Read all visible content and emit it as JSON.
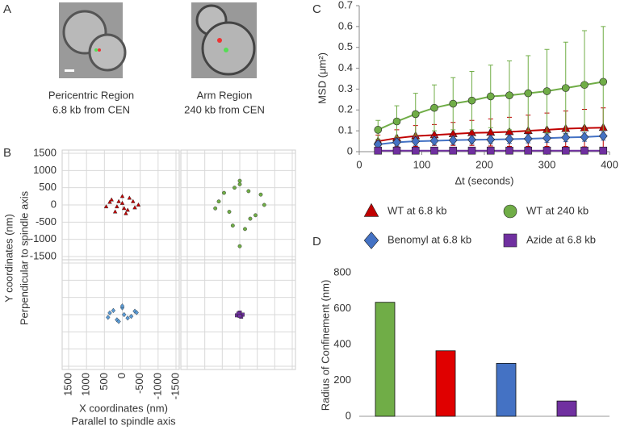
{
  "figure": {
    "A": {
      "letter": "A",
      "captions": [
        [
          "Pericentric Region",
          "6.8 kb from CEN"
        ],
        [
          "Arm Region",
          "240 kb from CEN"
        ]
      ]
    }
  },
  "chart_data": [
    {
      "type": "scatter-grid",
      "letter": "B",
      "ylabel": [
        "Y coordinates (nm)",
        "Perpendicular to spindle axis"
      ],
      "xlabel": [
        "X coordinates (nm)",
        "Parallel to spindle axis"
      ],
      "xlim": [
        1500,
        -1500
      ],
      "ylim": [
        -1500,
        1500
      ],
      "xticks": [
        1500,
        1000,
        500,
        0,
        -500,
        -1000,
        -1500
      ],
      "yticks": [
        1500,
        1000,
        500,
        0,
        -500,
        -1000,
        -1500
      ],
      "grid": true,
      "series": [
        {
          "color": "#c00000",
          "marker": "triangle",
          "x": [
            -300,
            -150,
            0,
            150,
            300,
            -450,
            450,
            -200,
            200,
            -50,
            100,
            -350,
            350,
            0,
            -100
          ],
          "y": [
            100,
            -150,
            50,
            -50,
            150,
            0,
            -50,
            200,
            -200,
            -100,
            100,
            -80,
            80,
            250,
            -250
          ]
        },
        {
          "color": "#70ad47",
          "marker": "circle",
          "x": [
            -600,
            -300,
            0,
            300,
            600,
            -150,
            150,
            -450,
            450,
            0,
            -700,
            700,
            200,
            -250,
            0
          ],
          "y": [
            300,
            -400,
            600,
            -200,
            100,
            -700,
            500,
            -300,
            350,
            -1200,
            0,
            -100,
            -600,
            400,
            700
          ]
        },
        {
          "color": "#5b9bd5",
          "marker": "diamond",
          "x": [
            -350,
            -150,
            0,
            150,
            350,
            -250,
            250,
            -50,
            100,
            0,
            400,
            -400
          ],
          "y": [
            100,
            -100,
            200,
            -150,
            50,
            -50,
            120,
            0,
            -200,
            250,
            -80,
            60
          ]
        },
        {
          "color": "#7030a0",
          "marker": "square",
          "x": [
            -80,
            0,
            80,
            -40,
            40,
            0
          ],
          "y": [
            0,
            60,
            -20,
            -60,
            30,
            -40
          ]
        }
      ]
    },
    {
      "type": "line",
      "letter": "C",
      "ylabel": "MSD (μm²)",
      "xlabel": "Δt (seconds)",
      "x": [
        30,
        60,
        90,
        120,
        150,
        180,
        210,
        240,
        270,
        300,
        330,
        360,
        390
      ],
      "xlim": [
        0,
        400
      ],
      "xticks": [
        0,
        100,
        200,
        300,
        400
      ],
      "ylim": [
        0,
        0.7
      ],
      "yticks": [
        0,
        0.1,
        0.2,
        0.3,
        0.4,
        0.5,
        0.6,
        0.7
      ],
      "series": [
        {
          "name": "WT at 6.8 kb",
          "color": "#c00000",
          "marker": "triangle",
          "values": [
            0.05,
            0.065,
            0.075,
            0.08,
            0.085,
            0.09,
            0.092,
            0.095,
            0.1,
            0.105,
            0.11,
            0.113,
            0.115
          ],
          "errors": [
            0.03,
            0.04,
            0.05,
            0.05,
            0.055,
            0.06,
            0.065,
            0.07,
            0.075,
            0.08,
            0.085,
            0.09,
            0.095
          ]
        },
        {
          "name": "WT at 240 kb",
          "color": "#70ad47",
          "marker": "circle",
          "values": [
            0.105,
            0.145,
            0.18,
            0.21,
            0.23,
            0.245,
            0.265,
            0.27,
            0.28,
            0.29,
            0.305,
            0.32,
            0.335
          ],
          "errors": [
            0.045,
            0.075,
            0.1,
            0.11,
            0.125,
            0.14,
            0.15,
            0.165,
            0.18,
            0.2,
            0.22,
            0.26,
            0.265
          ]
        },
        {
          "name": "Benomyl at 6.8 kb",
          "color": "#4472c4",
          "marker": "diamond",
          "values": [
            0.035,
            0.045,
            0.05,
            0.052,
            0.055,
            0.057,
            0.058,
            0.06,
            0.062,
            0.065,
            0.068,
            0.07,
            0.075
          ],
          "errors": [
            0.015,
            0.018,
            0.02,
            0.02,
            0.02,
            0.02,
            0.02,
            0.02,
            0.02,
            0.02,
            0.02,
            0.02,
            0.02
          ]
        },
        {
          "name": "Azide at 6.8 kb",
          "color": "#7030a0",
          "marker": "square",
          "values": [
            0.005,
            0.005,
            0.005,
            0.005,
            0.005,
            0.005,
            0.005,
            0.005,
            0.005,
            0.005,
            0.005,
            0.005,
            0.005
          ],
          "errors": [
            0.002,
            0.002,
            0.002,
            0.002,
            0.002,
            0.002,
            0.002,
            0.002,
            0.002,
            0.002,
            0.002,
            0.002,
            0.002
          ]
        }
      ]
    },
    {
      "type": "bar",
      "letter": "D",
      "ylabel": "Radius of Confinement (nm)",
      "categories": [
        null,
        null,
        null,
        null
      ],
      "values": [
        635,
        365,
        295,
        85
      ],
      "colors": [
        "#70ad47",
        "#e00000",
        "#4472c4",
        "#7030a0"
      ],
      "ylim": [
        0,
        800
      ],
      "yticks": [
        0,
        200,
        400,
        600,
        800
      ]
    }
  ]
}
